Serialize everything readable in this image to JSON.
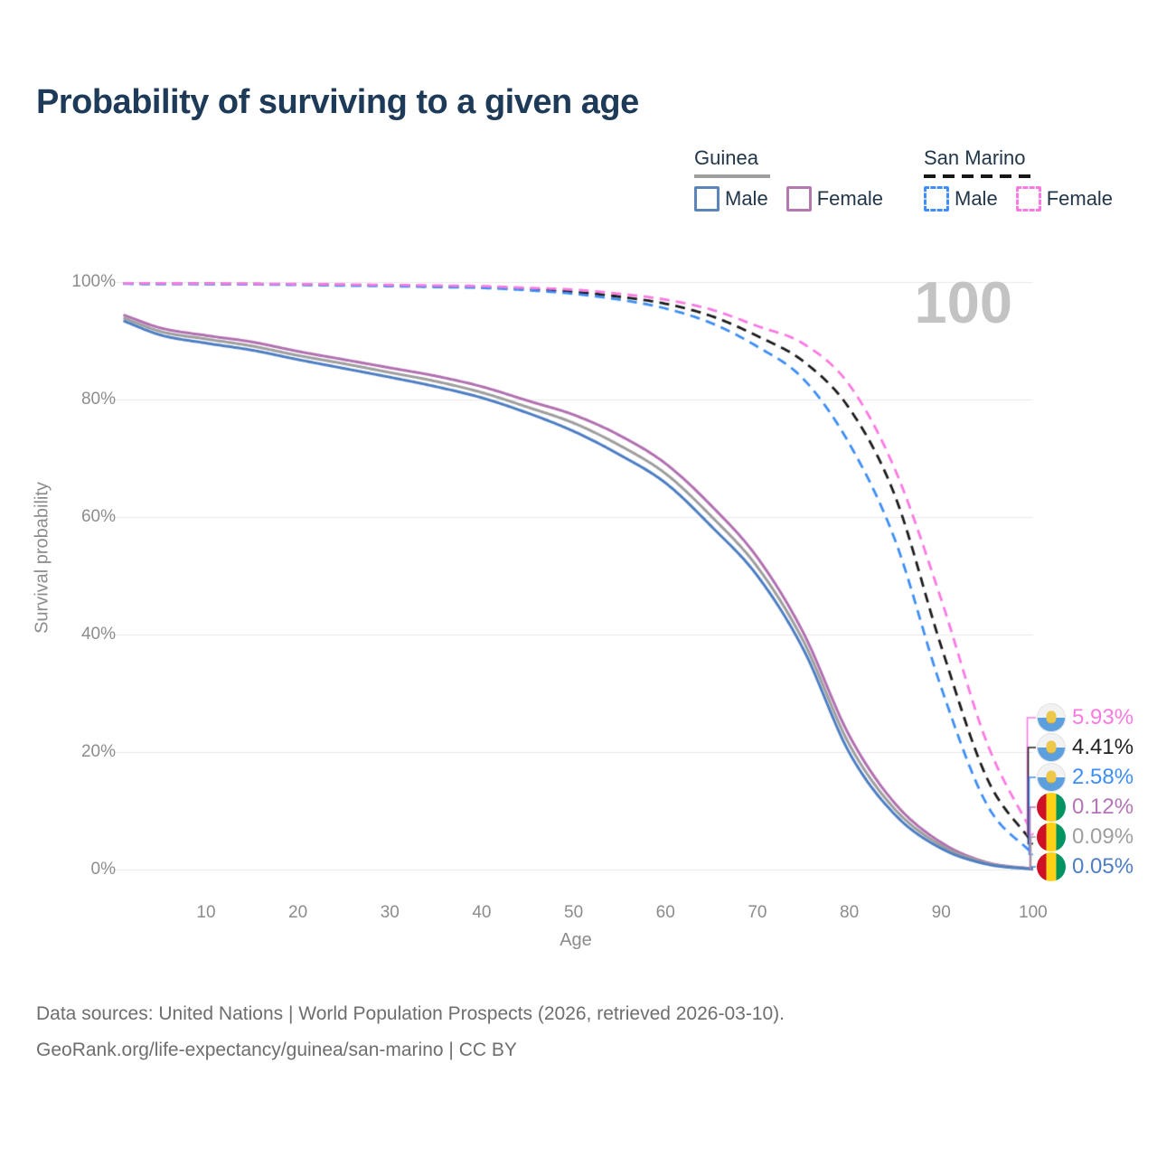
{
  "title": "Probability of surviving to a given age",
  "watermark": "100",
  "legend": {
    "groups": [
      {
        "label": "Guinea",
        "underline_color": "#9e9e9e",
        "underline_style": "solid",
        "items": [
          {
            "label": "Male",
            "color": "#5b84b8",
            "dash": false
          },
          {
            "label": "Female",
            "color": "#b578ad",
            "dash": false
          }
        ]
      },
      {
        "label": "San Marino",
        "underline_color": "#161616",
        "underline_style": "dashed",
        "items": [
          {
            "label": "Male",
            "color": "#3e8ef5",
            "dash": true
          },
          {
            "label": "Female",
            "color": "#fb79e3",
            "dash": true
          }
        ]
      }
    ]
  },
  "axes": {
    "y_label": "Survival probability",
    "x_label": "Age",
    "y_ticks": [
      "100%",
      "80%",
      "60%",
      "40%",
      "20%",
      "0%"
    ],
    "x_ticks": [
      "10",
      "20",
      "30",
      "40",
      "50",
      "60",
      "70",
      "80",
      "90",
      "100"
    ]
  },
  "chart_data": {
    "type": "line",
    "title": "Probability of surviving to a given age",
    "xlabel": "Age",
    "ylabel": "Survival probability",
    "xlim": [
      0,
      103
    ],
    "ylim": [
      0,
      100
    ],
    "grid": "horizontal-only",
    "legend_position": "top-right",
    "ages": [
      1,
      5,
      10,
      15,
      20,
      25,
      30,
      35,
      40,
      45,
      50,
      55,
      60,
      65,
      70,
      75,
      80,
      85,
      90,
      95,
      100
    ],
    "series": [
      {
        "id": "guinea_female",
        "name": "Guinea Female",
        "country": "Guinea",
        "sex": "Female",
        "color": "#b170b0",
        "dash": false,
        "values": [
          94.4,
          92.2,
          90.9,
          89.8,
          88.2,
          86.8,
          85.4,
          84.0,
          82.2,
          79.8,
          77.4,
          73.9,
          69.1,
          61.9,
          53.1,
          40.3,
          22.8,
          11.2,
          4.6,
          1.2,
          0.12
        ],
        "end_value_pct": 0.12
      },
      {
        "id": "guinea_total",
        "name": "Guinea Both sexes",
        "country": "Guinea",
        "sex": "Both",
        "color": "#9e9e9e",
        "dash": false,
        "values": [
          93.9,
          91.6,
          90.3,
          89.1,
          87.5,
          86.1,
          84.6,
          83.1,
          81.2,
          78.7,
          76.0,
          72.2,
          67.4,
          60.1,
          51.5,
          38.9,
          21.3,
          10.2,
          4.1,
          1.1,
          0.09
        ],
        "end_value_pct": 0.09
      },
      {
        "id": "guinea_male",
        "name": "Guinea Male",
        "country": "Guinea",
        "sex": "Male",
        "color": "#4d7ec3",
        "dash": false,
        "values": [
          93.4,
          91.0,
          89.6,
          88.4,
          86.8,
          85.3,
          83.8,
          82.2,
          80.3,
          77.7,
          74.6,
          70.6,
          65.8,
          58.4,
          50.0,
          37.5,
          19.9,
          9.3,
          3.6,
          0.9,
          0.05
        ],
        "end_value_pct": 0.05
      },
      {
        "id": "sm_total",
        "name": "San Marino Both sexes",
        "country": "San Marino",
        "sex": "Both",
        "color": "#1c1c1c",
        "dash": true,
        "values": [
          99.75,
          99.72,
          99.7,
          99.66,
          99.6,
          99.5,
          99.4,
          99.27,
          99.1,
          98.8,
          98.3,
          97.5,
          96.3,
          94.2,
          90.8,
          86.5,
          78.5,
          63.5,
          38.0,
          15.5,
          4.41
        ],
        "end_value_pct": 4.41
      },
      {
        "id": "sm_male",
        "name": "San Marino Male",
        "country": "San Marino",
        "sex": "Male",
        "color": "#3e8ef5",
        "dash": true,
        "values": [
          99.7,
          99.68,
          99.65,
          99.6,
          99.5,
          99.4,
          99.3,
          99.15,
          99.0,
          98.6,
          98.0,
          97.0,
          95.5,
          93.0,
          89.0,
          83.5,
          72.5,
          56.0,
          31.0,
          11.0,
          2.58
        ],
        "end_value_pct": 2.58
      },
      {
        "id": "sm_female",
        "name": "San Marino Female",
        "country": "San Marino",
        "sex": "Female",
        "color": "#fa7ae2",
        "dash": true,
        "values": [
          99.8,
          99.78,
          99.75,
          99.7,
          99.65,
          99.58,
          99.5,
          99.4,
          99.3,
          99.0,
          98.7,
          98.0,
          97.0,
          95.3,
          92.5,
          89.5,
          82.5,
          68.0,
          46.0,
          21.5,
          5.93
        ],
        "end_value_pct": 5.93
      }
    ]
  },
  "end_labels": [
    {
      "value": "5.93%",
      "series": "sm_female",
      "flag": "san-marino",
      "color": "#fa7ae2"
    },
    {
      "value": "4.41%",
      "series": "sm_total",
      "flag": "san-marino",
      "color": "#222222"
    },
    {
      "value": "2.58%",
      "series": "sm_male",
      "flag": "san-marino",
      "color": "#3e8ef5"
    },
    {
      "value": "0.12%",
      "series": "guinea_female",
      "flag": "guinea",
      "color": "#b474b6"
    },
    {
      "value": "0.09%",
      "series": "guinea_total",
      "flag": "guinea",
      "color": "#9e9e9e"
    },
    {
      "value": "0.05%",
      "series": "guinea_male",
      "flag": "guinea",
      "color": "#4d7ec3"
    }
  ],
  "footer": {
    "line1": "Data sources: United Nations | World Population Prospects (2026, retrieved 2026-03-10).",
    "line2": "GeoRank.org/life-expectancy/guinea/san-marino | CC BY"
  }
}
